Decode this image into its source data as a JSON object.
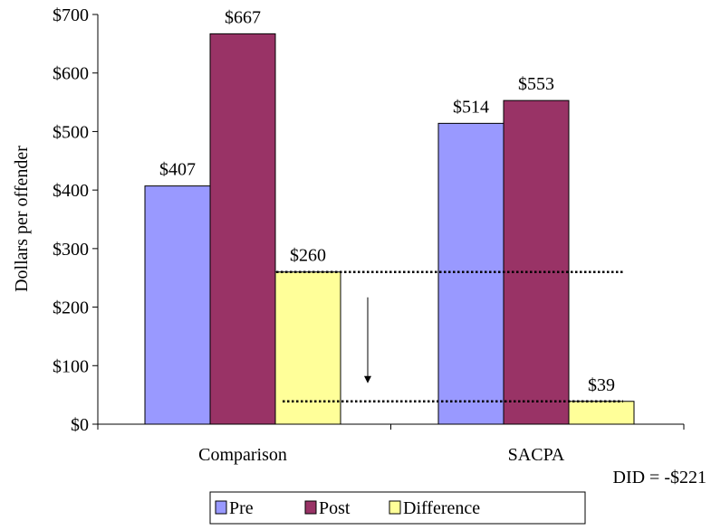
{
  "chart_data": {
    "type": "bar",
    "categories": [
      "Comparison",
      "SACPA"
    ],
    "series": [
      {
        "name": "Pre",
        "values": [
          407,
          514
        ],
        "color": "#9999ff"
      },
      {
        "name": "Post",
        "values": [
          667,
          553
        ],
        "color": "#993366"
      },
      {
        "name": "Difference",
        "values": [
          260,
          39
        ],
        "color": "#ffff99"
      }
    ],
    "data_labels": [
      [
        "$407",
        "$514"
      ],
      [
        "$667",
        "$553"
      ],
      [
        "$260",
        "$39"
      ]
    ],
    "title": "",
    "xlabel": "",
    "ylabel": "Dollars per offender",
    "ylim": [
      0,
      700
    ],
    "y_ticks": [
      0,
      100,
      200,
      300,
      400,
      500,
      600,
      700
    ],
    "y_tick_labels": [
      "$0",
      "$100",
      "$200",
      "$300",
      "$400",
      "$500",
      "$600",
      "$700"
    ],
    "grid": false,
    "legend_position": "bottom",
    "annotation": "DID = -$221",
    "reference_lines": [
      260,
      39
    ],
    "arrow": {
      "from": 260,
      "to": 39
    }
  }
}
